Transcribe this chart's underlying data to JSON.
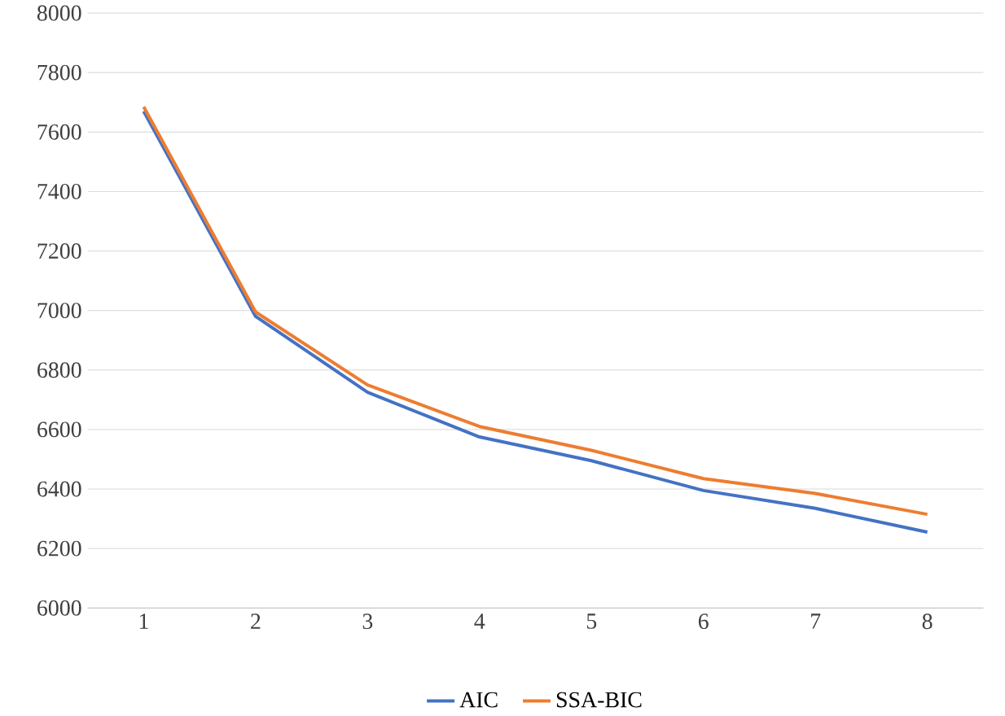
{
  "chart_data": {
    "type": "line",
    "categories": [
      "1",
      "2",
      "3",
      "4",
      "5",
      "6",
      "7",
      "8"
    ],
    "series": [
      {
        "name": "AIC",
        "color": "#4472c4",
        "values": [
          7670,
          6980,
          6725,
          6575,
          6495,
          6395,
          6335,
          6255
        ]
      },
      {
        "name": "SSA-BIC",
        "color": "#ed7d31",
        "values": [
          7685,
          6995,
          6750,
          6610,
          6530,
          6435,
          6385,
          6315
        ]
      }
    ],
    "ylim": [
      6000,
      8000
    ],
    "yticks": [
      6000,
      6200,
      6400,
      6600,
      6800,
      7000,
      7200,
      7400,
      7600,
      7800,
      8000
    ],
    "grid": "y",
    "legend": "bottom",
    "marker": "none",
    "line_style": "solid"
  }
}
